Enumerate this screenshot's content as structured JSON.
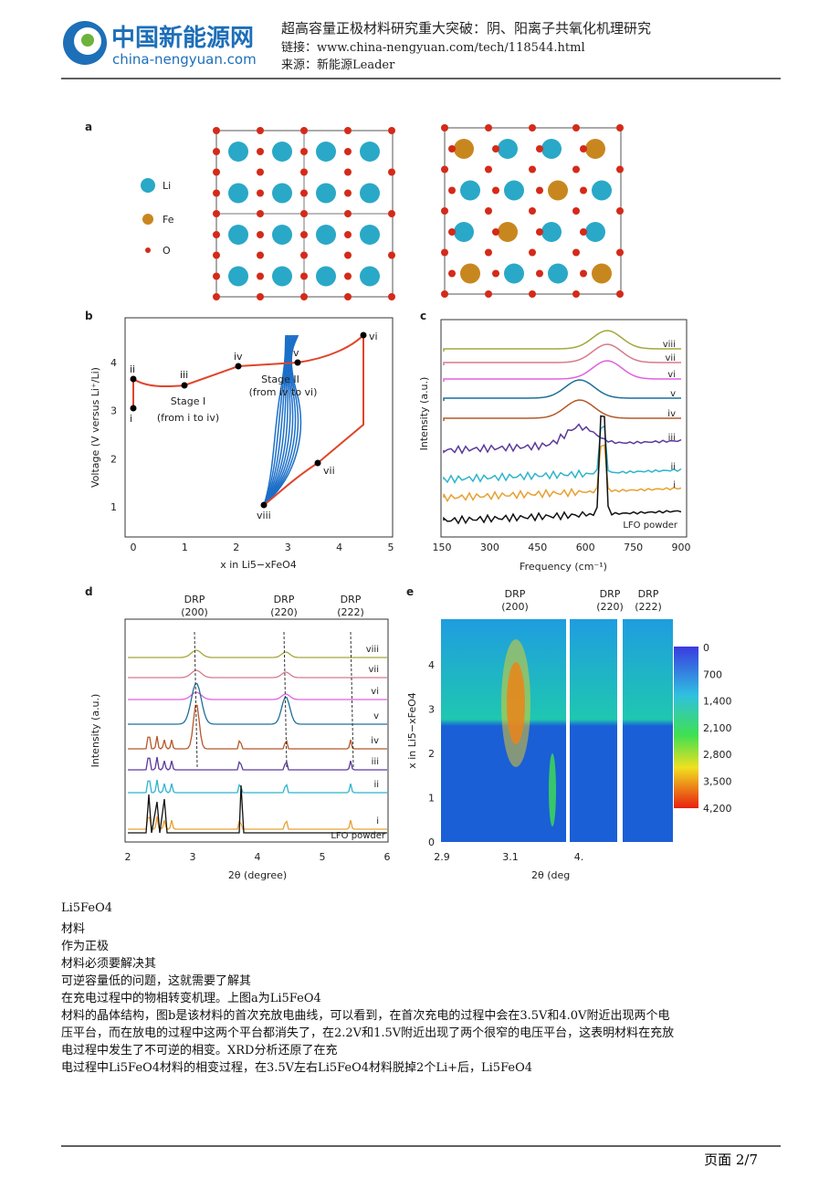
{
  "header": {
    "logo_cn": "中国新能源网",
    "logo_en": "china-nengyuan.com",
    "title": "超高容量正极材料研究重大突破：阴、阳离子共氧化机理研究",
    "link": "链接：www.china-nengyuan.com/tech/118544.html",
    "source": "来源：新能源Leader"
  },
  "figure": {
    "a": {
      "label": "a",
      "legend": [
        "Li",
        "Fe",
        "O"
      ]
    },
    "b": {
      "label": "b",
      "ylabel": "Voltage (V versus Li⁺/Li)",
      "xlabel": "x in Li5−xFeO4",
      "xticks": [
        "0",
        "1",
        "2",
        "3",
        "4",
        "5"
      ],
      "yticks": [
        "1",
        "2",
        "3",
        "4"
      ],
      "points": [
        "i",
        "ii",
        "iii",
        "iv",
        "v",
        "vi",
        "vii",
        "viii"
      ],
      "annotations": [
        "Stage I",
        "(from i to iv)",
        "Stage II",
        "(from iv to vi)"
      ]
    },
    "c": {
      "label": "c",
      "ylabel": "Intensity (a.u.)",
      "xlabel": "Frequency (cm⁻¹)",
      "xticks": [
        "150",
        "300",
        "450",
        "600",
        "750",
        "900"
      ],
      "traces": [
        "viii",
        "vii",
        "vi",
        "v",
        "iv",
        "iii",
        "ii",
        "i"
      ],
      "sample": "LFO powder"
    },
    "d": {
      "label": "d",
      "ylabel": "Intensity (a.u.)",
      "xlabel": "2θ (degree)",
      "xticks": [
        "2",
        "3",
        "4",
        "5",
        "6"
      ],
      "peaks": [
        [
          "DRP",
          "(200)"
        ],
        [
          "DRP",
          "(220)"
        ],
        [
          "DRP",
          "(222)"
        ]
      ],
      "traces": [
        "viii",
        "vii",
        "vi",
        "v",
        "iv",
        "iii",
        "ii",
        "i"
      ],
      "sample": "LFO powder"
    },
    "e": {
      "label": "e",
      "ylabel": "x in Li5−xFeO4",
      "xlabel": "2θ (deg",
      "xticks": [
        "2.9",
        "3.1",
        "4."
      ],
      "yticks": [
        "0",
        "1",
        "2",
        "3",
        "4"
      ],
      "peaks": [
        [
          "DRP",
          "(200)"
        ],
        [
          "DRP",
          "(220)"
        ],
        [
          "DRP",
          "(222)"
        ]
      ],
      "colorbar": [
        "0",
        "700",
        "1,400",
        "2,100",
        "2,800",
        "3,500",
        "4,200"
      ]
    }
  },
  "body": [
    "Li5FeO4",
    "材料",
    "作为正极",
    "材料必须要解决其",
    "可逆容量低的问题，这就需要了解其",
    "在充电过程中的物相转变机理。上图a为Li5FeO4",
    "材料的晶体结构，图b是该材料的首次充放电曲线，可以看到，在首次充电的过程中会在3.5V和4.0V附近出现两个电",
    "压平台，而在放电的过程中这两个平台都消失了，在2.2V和1.5V附近出现了两个很窄的电压平台，这表明材料在充放",
    "电过程中发生了不可逆的相变。XRD分析还原了在充",
    "电过程中Li5FeO4材料的相变过程，在3.5V左右Li5FeO4材料脱掉2个Li+后，Li5FeO4"
  ],
  "footer": {
    "page": "页面 2/7"
  }
}
